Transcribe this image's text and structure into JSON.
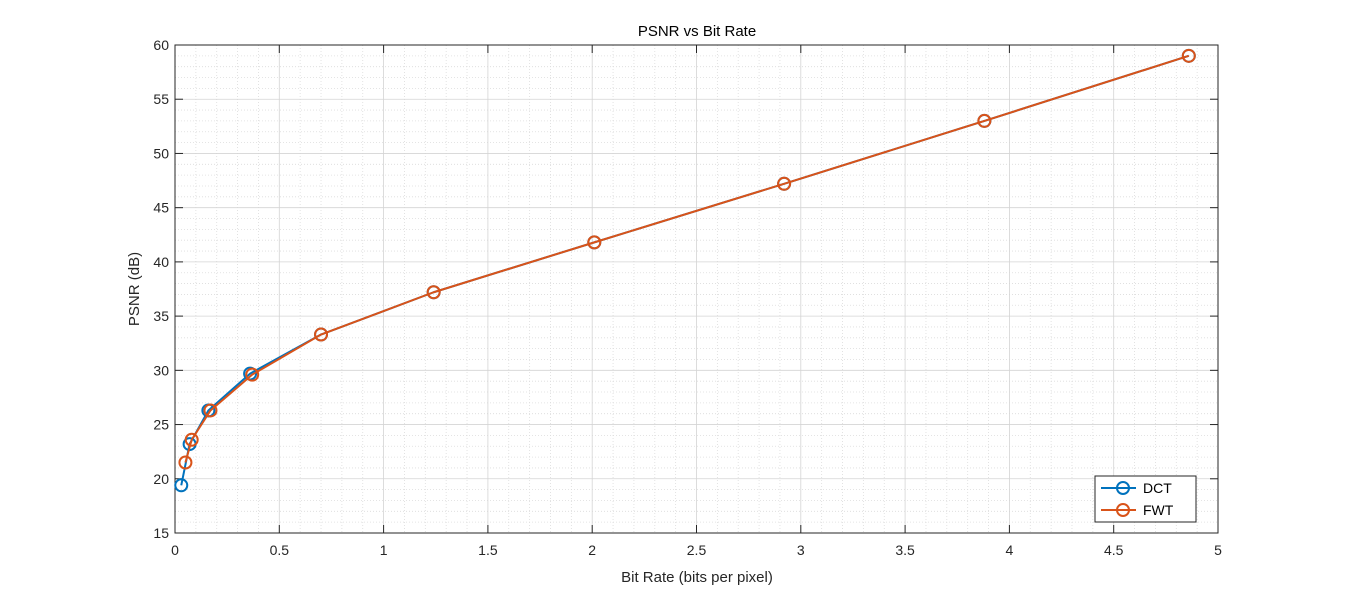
{
  "chart_data": {
    "type": "line",
    "title": "PSNR vs Bit Rate",
    "xlabel": "Bit Rate (bits per pixel)",
    "ylabel": "PSNR (dB)",
    "xlim": [
      0,
      5
    ],
    "ylim": [
      15,
      60
    ],
    "xticks": [
      "0",
      "0.5",
      "1",
      "1.5",
      "2",
      "2.5",
      "3",
      "3.5",
      "4",
      "4.5",
      "5"
    ],
    "yticks": [
      "15",
      "20",
      "25",
      "30",
      "35",
      "40",
      "45",
      "50",
      "55",
      "60"
    ],
    "grid": true,
    "minor_grid": true,
    "legend": "bottom-right",
    "series": [
      {
        "name": "DCT",
        "color": "#0072BD",
        "marker": "circle",
        "points": [
          {
            "x": 0.03,
            "y": 19.4
          },
          {
            "x": 0.07,
            "y": 23.2
          },
          {
            "x": 0.16,
            "y": 26.3
          },
          {
            "x": 0.36,
            "y": 29.7
          },
          {
            "x": 0.7,
            "y": 33.3
          },
          {
            "x": 1.24,
            "y": 37.2
          },
          {
            "x": 2.01,
            "y": 41.8
          },
          {
            "x": 2.92,
            "y": 47.2
          },
          {
            "x": 3.88,
            "y": 53.0
          },
          {
            "x": 4.86,
            "y": 59.0
          }
        ]
      },
      {
        "name": "FWT",
        "color": "#D95319",
        "marker": "circle",
        "points": [
          {
            "x": 0.05,
            "y": 21.5
          },
          {
            "x": 0.08,
            "y": 23.6
          },
          {
            "x": 0.17,
            "y": 26.3
          },
          {
            "x": 0.37,
            "y": 29.6
          },
          {
            "x": 0.7,
            "y": 33.3
          },
          {
            "x": 1.24,
            "y": 37.2
          },
          {
            "x": 2.01,
            "y": 41.8
          },
          {
            "x": 2.92,
            "y": 47.2
          },
          {
            "x": 3.88,
            "y": 53.0
          },
          {
            "x": 4.86,
            "y": 59.0
          }
        ]
      }
    ]
  }
}
